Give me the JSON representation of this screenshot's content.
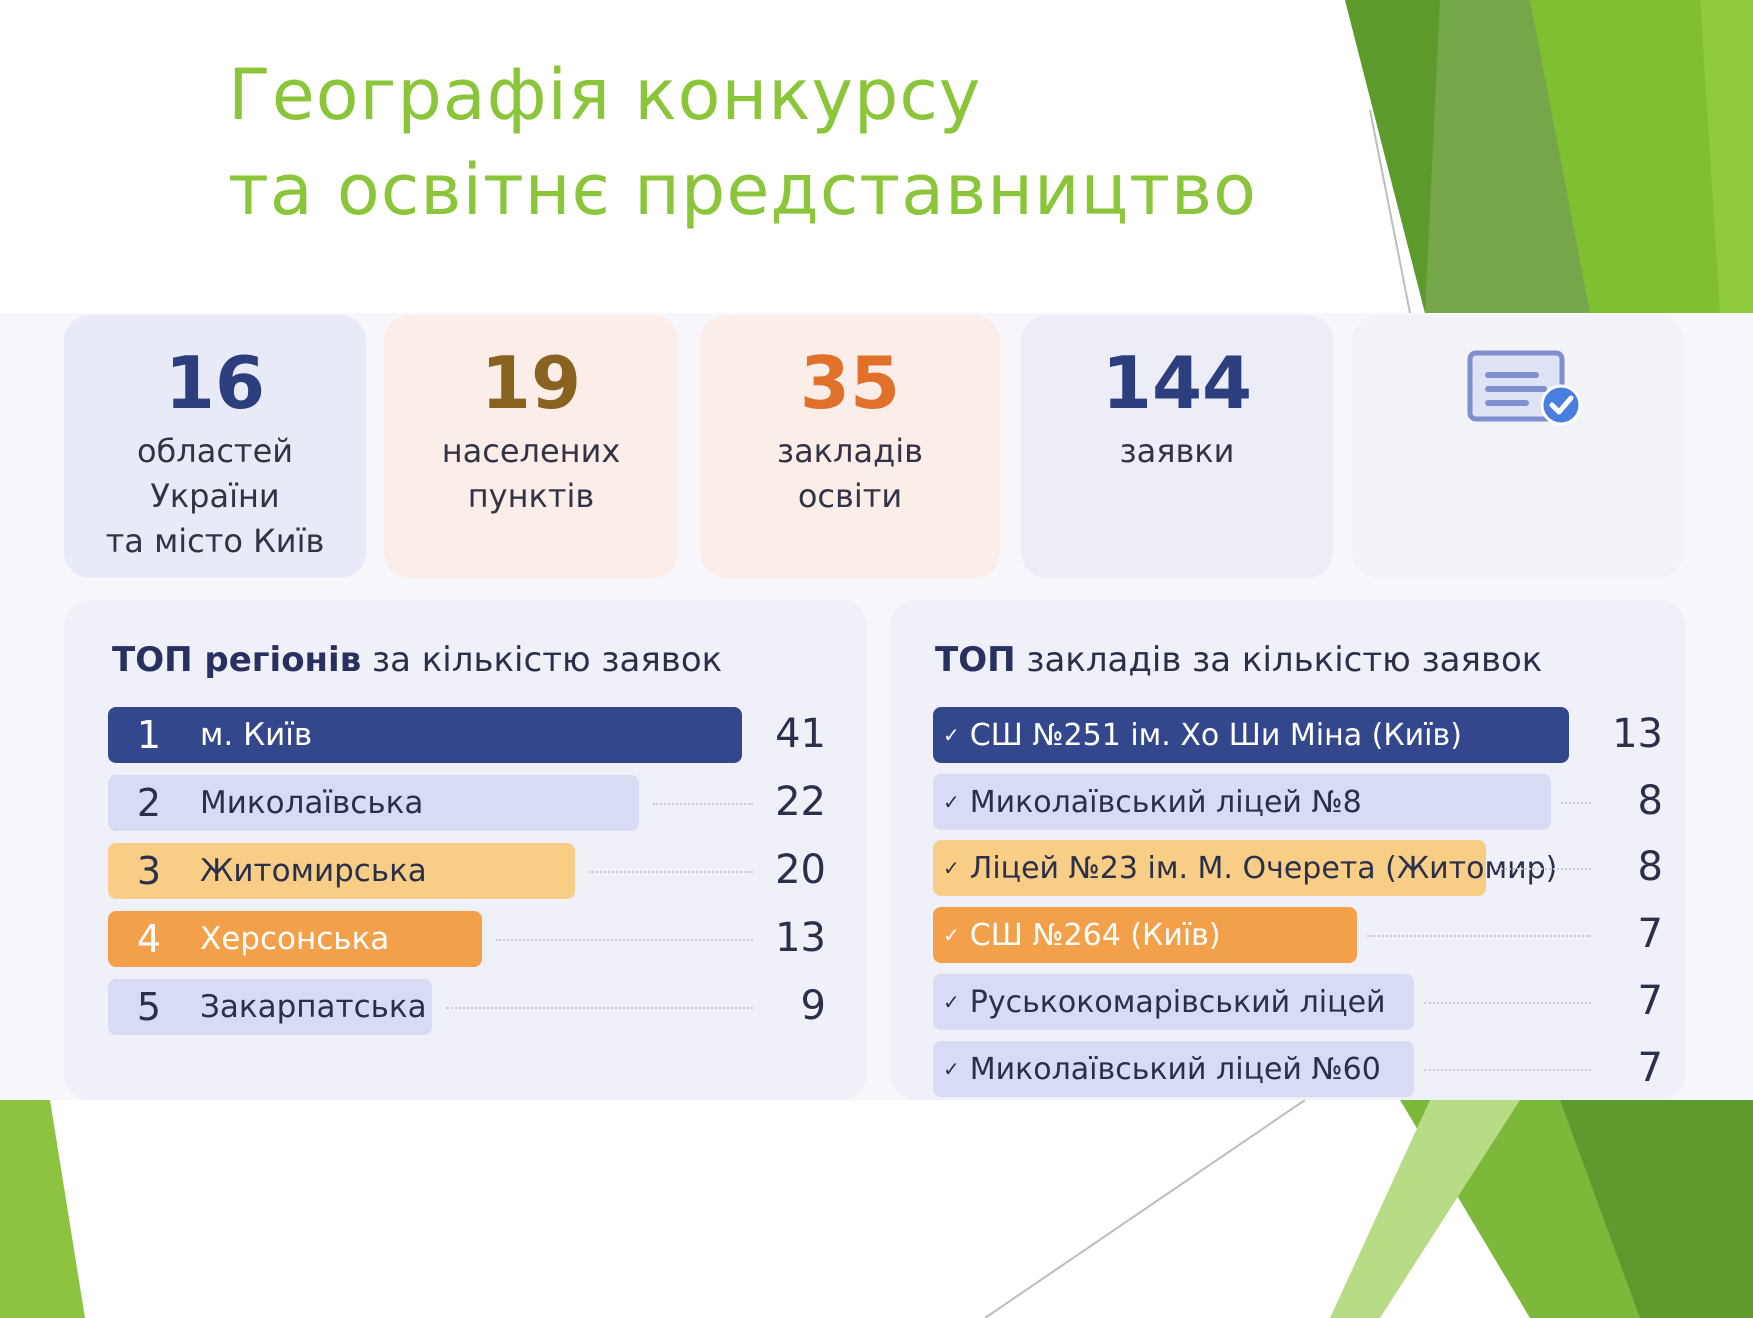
{
  "title": {
    "line1": "Географія конкурсу",
    "line2": "та освітнє представництво"
  },
  "stats": [
    {
      "value": "16",
      "label_lines": [
        "областей",
        "України",
        "та місто Київ"
      ],
      "color": "#2c3e7d"
    },
    {
      "value": "19",
      "label_lines": [
        "населених",
        "пунктів"
      ],
      "color": "#8a6220"
    },
    {
      "value": "35",
      "label_lines": [
        "закладів",
        "освіти"
      ],
      "color": "#e0702a"
    },
    {
      "value": "144",
      "label_lines": [
        "заявки"
      ],
      "color": "#2c3e7d"
    }
  ],
  "stats_icon": "document-check-icon",
  "top_regions": {
    "title_bold": "ТОП регіонів",
    "title_rest": " за кількістю заявок",
    "items": [
      {
        "rank": "1",
        "name": "м. Київ",
        "value": "41"
      },
      {
        "rank": "2",
        "name": "Миколаївська",
        "value": "22"
      },
      {
        "rank": "3",
        "name": "Житомирська",
        "value": "20"
      },
      {
        "rank": "4",
        "name": "Херсонська",
        "value": "13"
      },
      {
        "rank": "5",
        "name": "Закарпатська",
        "value": "9"
      }
    ]
  },
  "top_schools": {
    "title_bold": "ТОП",
    "title_rest": " закладів за кількістю заявок",
    "tick": "✓",
    "items": [
      {
        "name": "СШ №251 ім. Хо Ши Міна (Київ)",
        "value": "13"
      },
      {
        "name": "Миколаївський ліцей №8",
        "value": "8"
      },
      {
        "name": "Ліцей №23 ім. М. Очерета (Житомир)",
        "value": "8"
      },
      {
        "name": "СШ №264 (Київ)",
        "value": "7"
      },
      {
        "name": "Русько­комарівський ліцей",
        "value": "7"
      },
      {
        "name": "Миколаївський ліцей №60",
        "value": "7"
      }
    ]
  },
  "colors": {
    "title_green": "#8bc53a",
    "bar_blue": "#34478c",
    "bar_lavender": "#d7dcf4",
    "bar_yellow": "#f8ce86",
    "bar_orange": "#f3a04a"
  }
}
